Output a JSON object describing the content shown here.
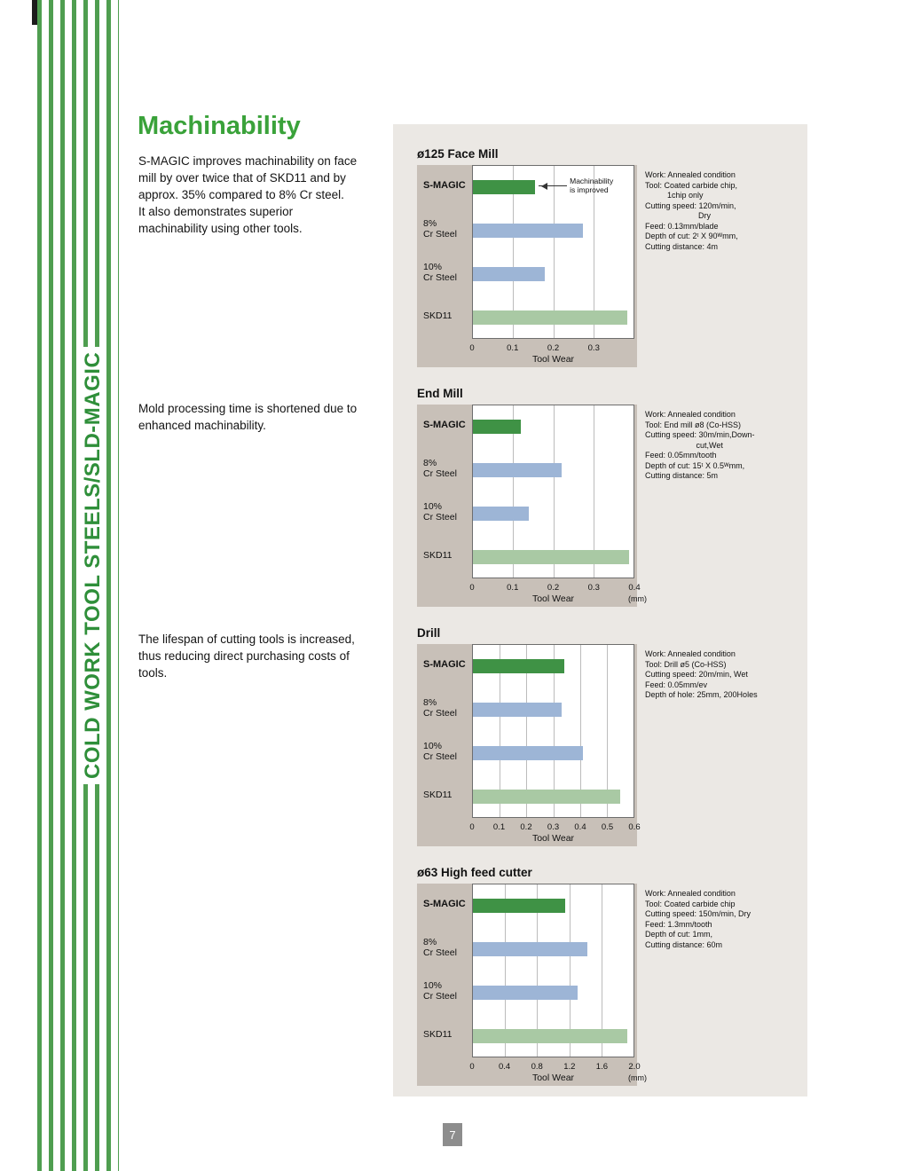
{
  "sidebar": {
    "title": "COLD WORK TOOL STEELS/SLD-MAGIC"
  },
  "main": {
    "heading": "Machinability",
    "paragraphs": [
      "S-MAGIC  improves machinability on face\nmill by over twice that of SKD11 and by\napprox. 35% compared to 8% Cr steel.\nIt also demonstrates superior\nmachinability using other tools.",
      "Mold processing time is shortened due to\nenhanced machinability.",
      "The lifespan of cutting tools is increased,\nthus reducing direct purchasing costs of\ntools."
    ]
  },
  "footer": {
    "page_number": "7"
  },
  "colors": {
    "heading_green": "#3aa23a",
    "stripe_green": "#4f9e50",
    "smagic_bar": "#3f9245",
    "cr_steel_bar": "#9db5d6",
    "skd11_bar": "#a9c9a4",
    "chart_panel": "#c8c0b8",
    "outer_panel": "#ebe8e4",
    "page_number_box": "#8d8d8d"
  },
  "chart_data": [
    {
      "id": "face-mill",
      "type": "bar",
      "orientation": "horizontal",
      "title": "ø125 Face Mill",
      "xlabel": "Tool Wear",
      "unit": "",
      "xlim": [
        0,
        0.4
      ],
      "ticks": [
        0,
        0.1,
        0.2,
        0.3
      ],
      "tick_labels": [
        "0",
        "0.1",
        "0.2",
        "0.3"
      ],
      "categories": [
        "S-MAGIC",
        "8% Cr Steel",
        "10% Cr Steel",
        "SKD11"
      ],
      "category_lines": [
        [
          "S-MAGIC"
        ],
        [
          "8%",
          "Cr Steel"
        ],
        [
          "10%",
          "Cr Steel"
        ],
        [
          "SKD11"
        ]
      ],
      "values": [
        0.155,
        0.275,
        0.18,
        0.385
      ],
      "bar_colors": [
        "#3f9245",
        "#9db5d6",
        "#9db5d6",
        "#a9c9a4"
      ],
      "annotation": [
        "Machinability",
        "is improved"
      ],
      "notes": [
        "Work: Annealed condition",
        "Tool: Coated carbide chip,",
        "          1chip only",
        "Cutting speed: 120m/min,",
        "                        Dry",
        "Feed: 0.13mm/blade",
        "Depth of cut: 2ᵗ X 90ᵂmm,",
        "Cutting distance: 4m"
      ]
    },
    {
      "id": "end-mill",
      "type": "bar",
      "orientation": "horizontal",
      "title": "End Mill",
      "xlabel": "Tool Wear",
      "unit": "(mm)",
      "xlim": [
        0,
        0.4
      ],
      "ticks": [
        0,
        0.1,
        0.2,
        0.3,
        0.4
      ],
      "tick_labels": [
        "0",
        "0.1",
        "0.2",
        "0.3",
        "0.4"
      ],
      "categories": [
        "S-MAGIC",
        "8% Cr Steel",
        "10% Cr Steel",
        "SKD11"
      ],
      "category_lines": [
        [
          "S-MAGIC"
        ],
        [
          "8%",
          "Cr Steel"
        ],
        [
          "10%",
          "Cr Steel"
        ],
        [
          "SKD11"
        ]
      ],
      "values": [
        0.12,
        0.22,
        0.14,
        0.39
      ],
      "bar_colors": [
        "#3f9245",
        "#9db5d6",
        "#9db5d6",
        "#a9c9a4"
      ],
      "notes": [
        "Work: Annealed condition",
        "Tool: End mill ø8 (Co-HSS)",
        "Cutting speed: 30m/min,Down-",
        "                       cut,Wet",
        "Feed: 0.05mm/tooth",
        "Depth of cut: 15ᵗ X 0.5ᵂmm,",
        "Cutting distance: 5m"
      ]
    },
    {
      "id": "drill",
      "type": "bar",
      "orientation": "horizontal",
      "title": "Drill",
      "xlabel": "Tool Wear",
      "unit": "",
      "xlim": [
        0,
        0.6
      ],
      "ticks": [
        0,
        0.1,
        0.2,
        0.3,
        0.4,
        0.5,
        0.6
      ],
      "tick_labels": [
        "0",
        "0.1",
        "0.2",
        "0.3",
        "0.4",
        "0.5",
        "0.6"
      ],
      "categories": [
        "S-MAGIC",
        "8% Cr Steel",
        "10% Cr Steel",
        "SKD11"
      ],
      "category_lines": [
        [
          "S-MAGIC"
        ],
        [
          "8%",
          "Cr Steel"
        ],
        [
          "10%",
          "Cr Steel"
        ],
        [
          "SKD11"
        ]
      ],
      "values": [
        0.34,
        0.33,
        0.41,
        0.55
      ],
      "bar_colors": [
        "#3f9245",
        "#9db5d6",
        "#9db5d6",
        "#a9c9a4"
      ],
      "notes": [
        "Work: Annealed condition",
        "Tool: Drill ø5 (Co-HSS)",
        "Cutting speed: 20m/min, Wet",
        "Feed: 0.05mm/ev",
        "Depth of hole: 25mm, 200Holes"
      ]
    },
    {
      "id": "high-feed-cutter",
      "type": "bar",
      "orientation": "horizontal",
      "title": "ø63 High feed cutter",
      "xlabel": "Tool Wear",
      "unit": "(mm)",
      "xlim": [
        0,
        2.0
      ],
      "ticks": [
        0,
        0.4,
        0.8,
        1.2,
        1.6,
        2.0
      ],
      "tick_labels": [
        "0",
        "0.4",
        "0.8",
        "1.2",
        "1.6",
        "2.0"
      ],
      "categories": [
        "S-MAGIC",
        "8% Cr Steel",
        "10% Cr Steel",
        "SKD11"
      ],
      "category_lines": [
        [
          "S-MAGIC"
        ],
        [
          "8%",
          "Cr Steel"
        ],
        [
          "10%",
          "Cr Steel"
        ],
        [
          "SKD11"
        ]
      ],
      "values": [
        1.15,
        1.42,
        1.3,
        1.92
      ],
      "bar_colors": [
        "#3f9245",
        "#9db5d6",
        "#9db5d6",
        "#a9c9a4"
      ],
      "notes": [
        "Work: Annealed condition",
        "Tool: Coated carbide chip",
        "Cutting speed: 150m/min, Dry",
        "Feed: 1.3mm/tooth",
        "Depth of cut: 1mm,",
        "Cutting distance: 60m"
      ]
    }
  ]
}
